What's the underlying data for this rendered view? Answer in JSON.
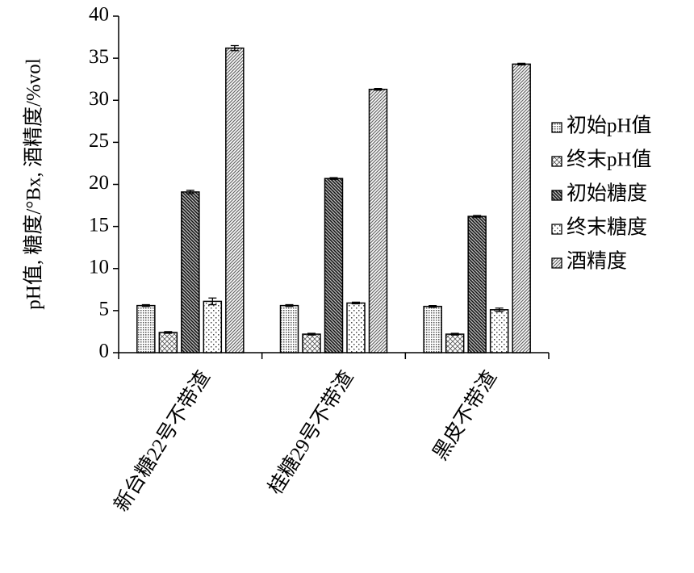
{
  "chart_data": {
    "type": "bar",
    "y_label": "pH值, 糖度/°Bx, 酒精度/%vol",
    "categories": [
      "新台糖22号不带渣",
      "桂糖29号不带渣",
      "黑皮不带渣"
    ],
    "ylim": [
      0,
      40
    ],
    "yticks": [
      0,
      5,
      10,
      15,
      20,
      25,
      30,
      35,
      40
    ],
    "legend": "right",
    "series": [
      {
        "name": "初始pH值",
        "color": "#000000",
        "pattern": "dots",
        "values": [
          5.6,
          5.6,
          5.5
        ],
        "errors": [
          0.1,
          0.1,
          0.1
        ]
      },
      {
        "name": "终末pH值",
        "color": "#000000",
        "pattern": "cross",
        "values": [
          2.4,
          2.2,
          2.2
        ],
        "errors": [
          0.1,
          0.1,
          0.1
        ]
      },
      {
        "name": "初始糖度",
        "color": "#000000",
        "pattern": "dense-diagonal",
        "values": [
          19.1,
          20.7,
          16.2
        ],
        "errors": [
          0.2,
          0.1,
          0.1
        ]
      },
      {
        "name": "终末糖度",
        "color": "#000000",
        "pattern": "sparse-dots",
        "values": [
          6.1,
          5.9,
          5.1
        ],
        "errors": [
          0.4,
          0.1,
          0.2
        ]
      },
      {
        "name": "酒精度",
        "color": "#000000",
        "pattern": "diagonal",
        "values": [
          36.2,
          31.3,
          34.3
        ],
        "errors": [
          0.3,
          0.1,
          0.1
        ]
      }
    ]
  }
}
